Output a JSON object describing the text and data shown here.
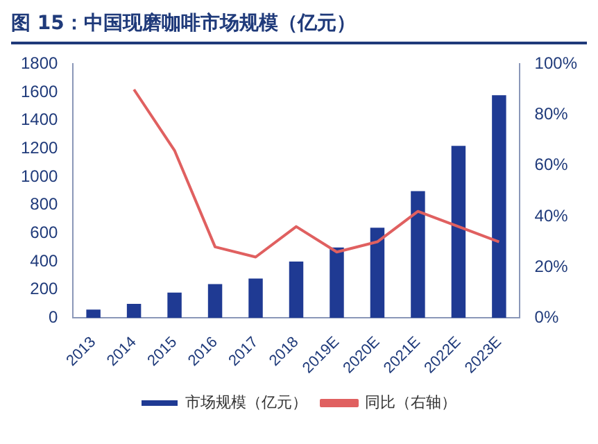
{
  "chart_data": {
    "type": "bar",
    "title": "图 15：中国现磨咖啡市场规模（亿元）",
    "categories": [
      "2013",
      "2014",
      "2015",
      "2016",
      "2017",
      "2018",
      "2019E",
      "2020E",
      "2021E",
      "2022E",
      "2023E"
    ],
    "series": [
      {
        "name": "市场规模（亿元）",
        "color": "#1f3a93",
        "values": [
          60,
          100,
          180,
          240,
          280,
          400,
          500,
          640,
          900,
          1220,
          1580
        ]
      },
      {
        "name": "同比（右轴）",
        "type": "line",
        "axis": "y2",
        "color": "#e06060",
        "values": [
          null,
          90,
          66,
          28,
          24,
          36,
          26,
          30,
          42,
          36,
          30
        ]
      }
    ],
    "ylim": [
      0,
      1800
    ],
    "yticks": [
      0,
      200,
      400,
      600,
      800,
      1000,
      1200,
      1400,
      1600,
      1800
    ],
    "y2lim": [
      0,
      100
    ],
    "y2ticks": [
      {
        "value": 0,
        "label": "0%"
      },
      {
        "value": 20,
        "label": "20%"
      },
      {
        "value": 40,
        "label": "40%"
      },
      {
        "value": 60,
        "label": "60%"
      },
      {
        "value": 80,
        "label": "80%"
      },
      {
        "value": 100,
        "label": "100%"
      }
    ],
    "grid": false,
    "legend": "bottom",
    "marker": "none"
  }
}
